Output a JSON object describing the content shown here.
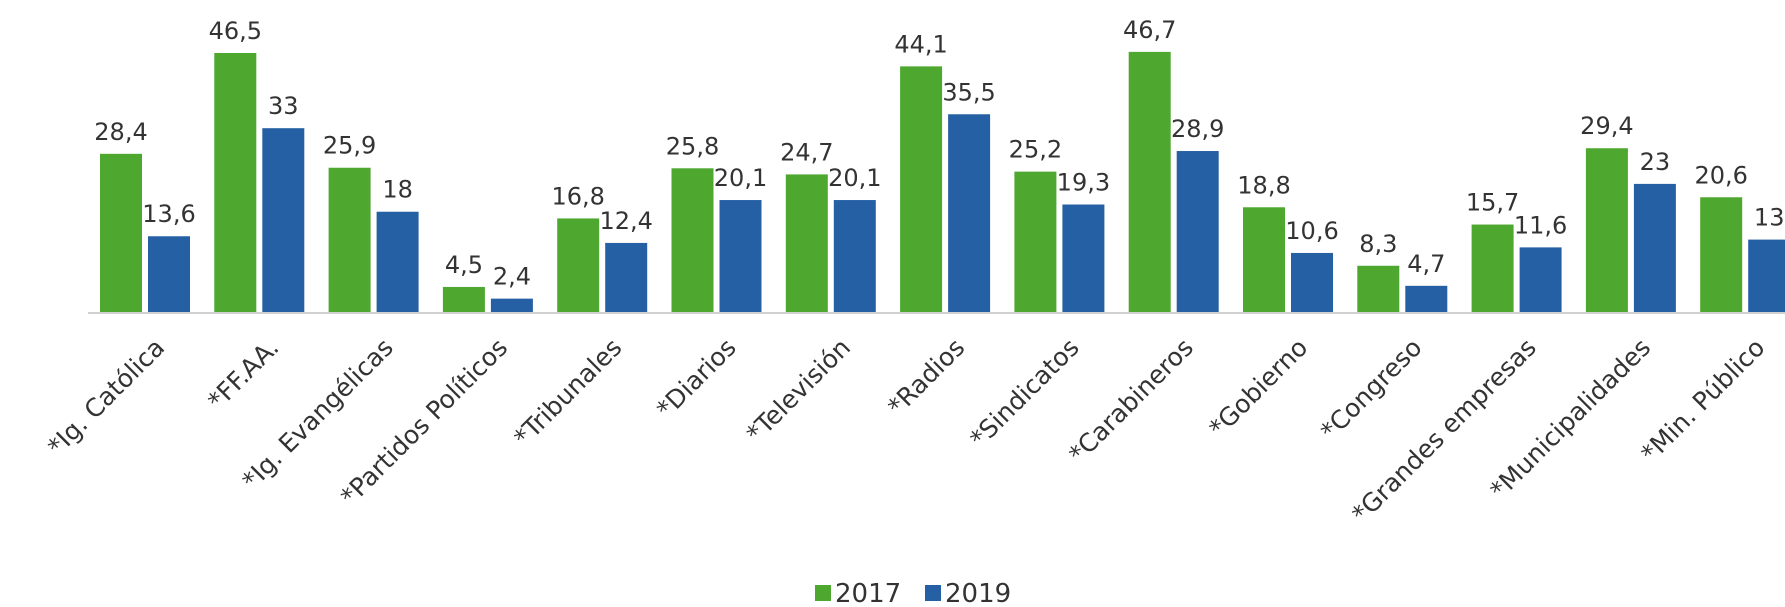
{
  "chart_data": {
    "type": "bar",
    "categories": [
      "*Ig. Católica",
      "*FF.AA.",
      "*Ig. Evangélicas",
      "*Partidos Políticos",
      "*Tribunales",
      "*Diarios",
      "*Televisión",
      "*Radios",
      "*Sindicatos",
      "*Carabineros",
      "*Gobierno",
      "*Congreso",
      "*Grandes empresas",
      "*Municipalidades",
      "*Min. Público"
    ],
    "series": [
      {
        "name": "2017",
        "color": "#4ea72e",
        "values": [
          28.4,
          46.5,
          25.9,
          4.5,
          16.8,
          25.8,
          24.7,
          44.1,
          25.2,
          46.7,
          18.8,
          8.3,
          15.7,
          29.4,
          20.6
        ],
        "value_labels": [
          "28,4",
          "46,5",
          "25,9",
          "4,5",
          "16,8",
          "25,8",
          "24,7",
          "44,1",
          "25,2",
          "46,7",
          "18,8",
          "8,3",
          "15,7",
          "29,4",
          "20,6"
        ]
      },
      {
        "name": "2019",
        "color": "#2660a4",
        "values": [
          13.6,
          33,
          18,
          2.4,
          12.4,
          20.1,
          20.1,
          35.5,
          19.3,
          28.9,
          10.6,
          4.7,
          11.6,
          23,
          13
        ],
        "value_labels": [
          "13,6",
          "33",
          "18",
          "2,4",
          "12,4",
          "20,1",
          "20,1",
          "35,5",
          "19,3",
          "28,9",
          "10,6",
          "4,7",
          "11,6",
          "23",
          "13"
        ]
      }
    ],
    "legend": "bottom"
  }
}
